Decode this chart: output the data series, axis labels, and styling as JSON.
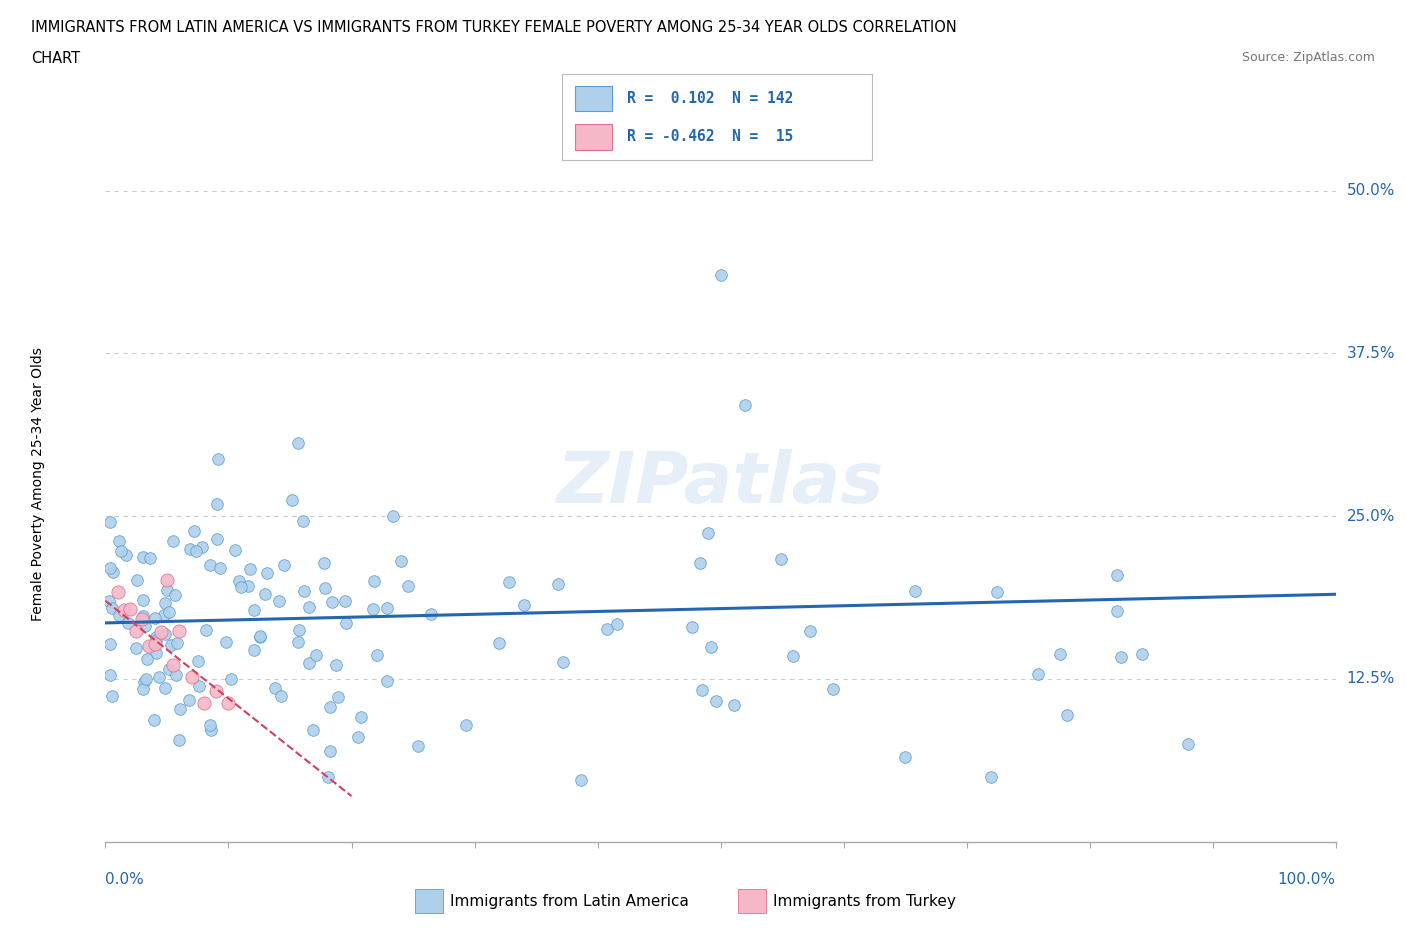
{
  "title_line1": "IMMIGRANTS FROM LATIN AMERICA VS IMMIGRANTS FROM TURKEY FEMALE POVERTY AMONG 25-34 YEAR OLDS CORRELATION",
  "title_line2": "CHART",
  "source_text": "Source: ZipAtlas.com",
  "ylabel": "Female Poverty Among 25-34 Year Olds",
  "xlim": [
    0,
    1.0
  ],
  "ylim": [
    0,
    0.55
  ],
  "yticks": [
    0.0,
    0.125,
    0.25,
    0.375,
    0.5
  ],
  "ytick_labels": [
    "",
    "12.5%",
    "25.0%",
    "37.5%",
    "50.0%"
  ],
  "watermark": "ZIPatlas",
  "blue_color": "#afd0ea",
  "blue_line_color": "#2567ae",
  "blue_edge_color": "#5a9fd4",
  "pink_color": "#f5b8c8",
  "pink_line_color": "#d44060",
  "pink_edge_color": "#e07090",
  "blue_intercept": 0.168,
  "blue_slope": 0.022,
  "pink_intercept": 0.185,
  "pink_slope": -0.75,
  "legend_text1": "R =  0.102  N = 142",
  "legend_text2": "R = -0.462  N =  15",
  "bottom_label1": "Immigrants from Latin America",
  "bottom_label2": "Immigrants from Turkey"
}
